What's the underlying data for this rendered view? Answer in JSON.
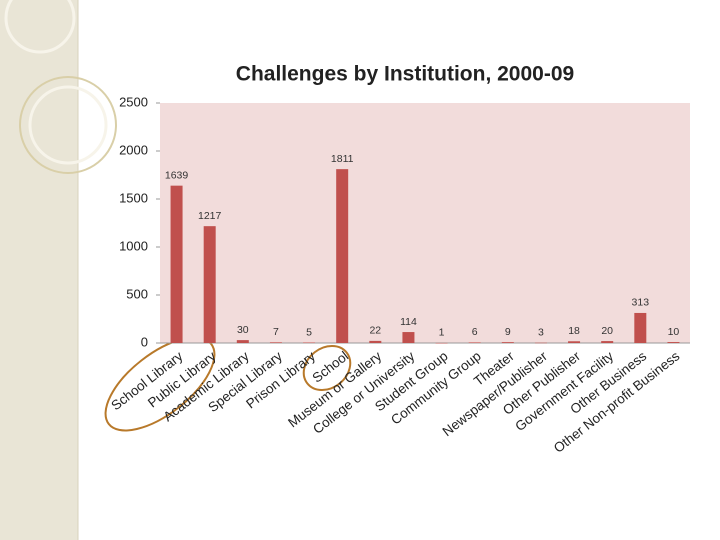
{
  "chart_data": {
    "type": "bar",
    "title": "Challenges by Institution, 2000-09",
    "categories": [
      "School Library",
      "Public Library",
      "Academic Library",
      "Special Library",
      "Prison Library",
      "School",
      "Museum or Gallery",
      "College or University",
      "Student Group",
      "Community Group",
      "Theater",
      "Newspaper/Publisher",
      "Other Publisher",
      "Government Facility",
      "Other Business",
      "Other Non-profit Business"
    ],
    "values": [
      1639,
      1217,
      30,
      7,
      5,
      1811,
      22,
      114,
      1,
      6,
      9,
      3,
      18,
      20,
      313,
      10
    ],
    "color": "#c0504d",
    "plot_background": "#f2dcdb",
    "ylim": [
      0,
      2500
    ],
    "yticks": [
      0,
      500,
      1000,
      1500,
      2000,
      2500
    ],
    "grid": false
  }
}
